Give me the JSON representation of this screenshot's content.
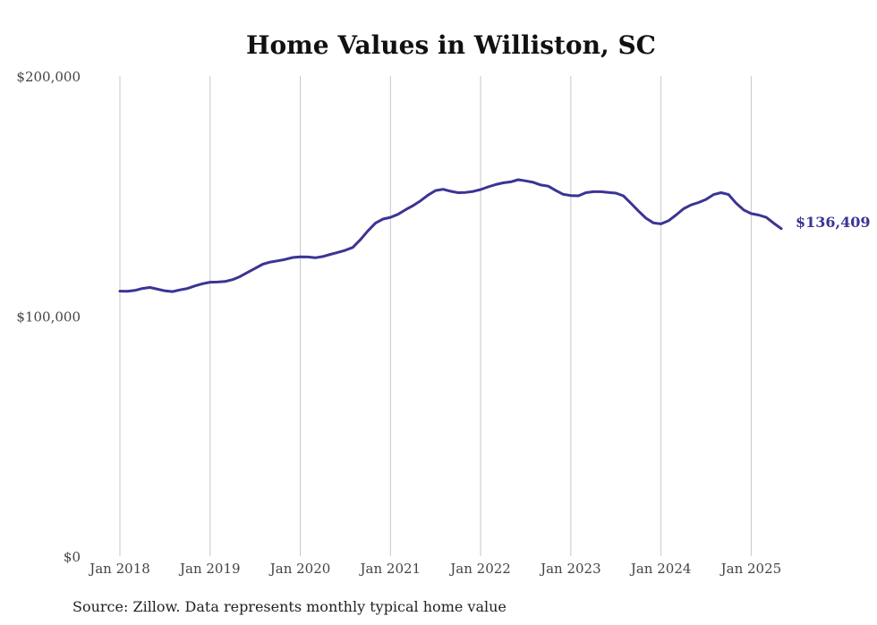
{
  "chart_data": {
    "type": "line",
    "title": "Home Values in Williston, SC",
    "xlabel": "",
    "ylabel": "",
    "x_tick_labels": [
      "Jan 2018",
      "Jan 2019",
      "Jan 2020",
      "Jan 2021",
      "Jan 2022",
      "Jan 2023",
      "Jan 2024",
      "Jan 2025"
    ],
    "y_tick_labels": [
      "$0",
      "$100,000",
      "$200,000"
    ],
    "ylim": [
      0,
      200000
    ],
    "xlim": [
      "2018-01",
      "2025-05"
    ],
    "grid": "vertical",
    "line_color": "#3b3494",
    "end_label": "$136,409",
    "series": [
      {
        "x": [
          "2018-01",
          "2018-02",
          "2018-03",
          "2018-04",
          "2018-05",
          "2018-06",
          "2018-07",
          "2018-08",
          "2018-09",
          "2018-10",
          "2018-11",
          "2018-12",
          "2019-01",
          "2019-02",
          "2019-03",
          "2019-04",
          "2019-05",
          "2019-06",
          "2019-07",
          "2019-08",
          "2019-09",
          "2019-10",
          "2019-11",
          "2019-12",
          "2020-01",
          "2020-02",
          "2020-03",
          "2020-04",
          "2020-05",
          "2020-06",
          "2020-07",
          "2020-08",
          "2020-09",
          "2020-10",
          "2020-11",
          "2020-12",
          "2021-01",
          "2021-02",
          "2021-03",
          "2021-04",
          "2021-05",
          "2021-06",
          "2021-07",
          "2021-08",
          "2021-09",
          "2021-10",
          "2021-11",
          "2021-12",
          "2022-01",
          "2022-02",
          "2022-03",
          "2022-04",
          "2022-05",
          "2022-06",
          "2022-07",
          "2022-08",
          "2022-09",
          "2022-10",
          "2022-11",
          "2022-12",
          "2023-01",
          "2023-02",
          "2023-03",
          "2023-04",
          "2023-05",
          "2023-06",
          "2023-07",
          "2023-08",
          "2023-09",
          "2023-10",
          "2023-11",
          "2023-12",
          "2024-01",
          "2024-02",
          "2024-03",
          "2024-04",
          "2024-05",
          "2024-06",
          "2024-07",
          "2024-08",
          "2024-09",
          "2024-10",
          "2024-11",
          "2024-12",
          "2025-01",
          "2025-02",
          "2025-03",
          "2025-04",
          "2025-05"
        ],
        "values": [
          110400,
          110300,
          110700,
          111500,
          111900,
          111200,
          110500,
          110200,
          110900,
          111500,
          112600,
          113500,
          114100,
          114200,
          114400,
          115200,
          116500,
          118200,
          119900,
          121600,
          122500,
          123000,
          123600,
          124400,
          124700,
          124600,
          124300,
          124800,
          125700,
          126500,
          127400,
          128600,
          131800,
          135500,
          138700,
          140400,
          141100,
          142400,
          144300,
          146000,
          148000,
          150400,
          152300,
          152800,
          152000,
          151400,
          151500,
          151900,
          152700,
          153800,
          154800,
          155500,
          155900,
          156800,
          156300,
          155700,
          154600,
          154100,
          152300,
          150700,
          150200,
          150100,
          151400,
          151800,
          151800,
          151500,
          151200,
          150100,
          147000,
          143800,
          140800,
          138800,
          138400,
          139700,
          142100,
          144700,
          146300,
          147300,
          148600,
          150600,
          151400,
          150600,
          147000,
          144200,
          142700,
          142100,
          141100,
          138700,
          136409
        ]
      }
    ]
  },
  "source_text": "Source: Zillow. Data represents monthly typical home value"
}
